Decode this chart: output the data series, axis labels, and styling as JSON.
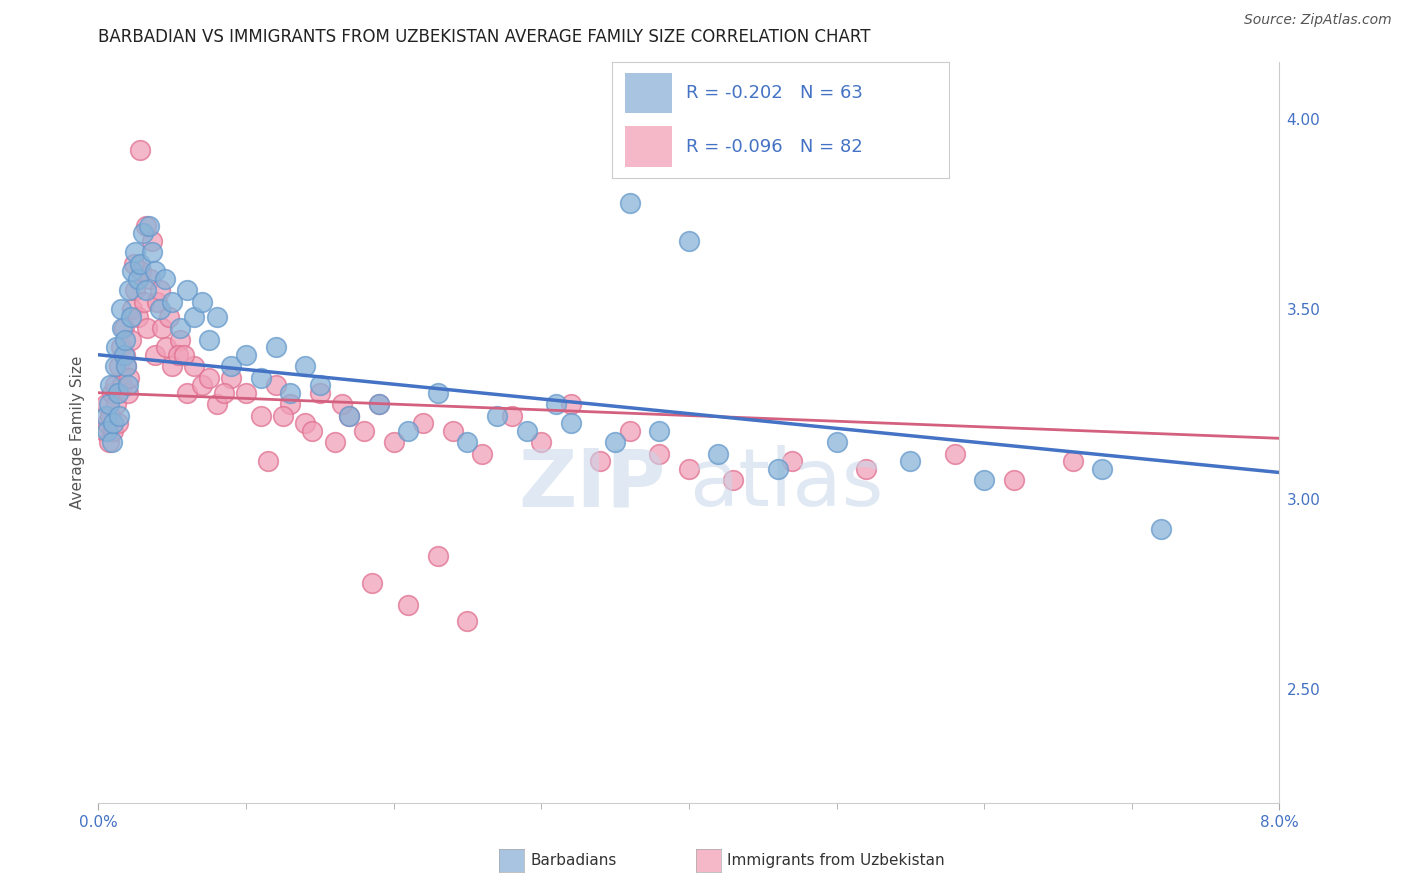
{
  "title": "BARBADIAN VS IMMIGRANTS FROM UZBEKISTAN AVERAGE FAMILY SIZE CORRELATION CHART",
  "source": "Source: ZipAtlas.com",
  "ylabel": "Average Family Size",
  "xlim": [
    0.0,
    8.0
  ],
  "ylim": [
    2.2,
    4.15
  ],
  "yticks_right": [
    2.5,
    3.0,
    3.5,
    4.0
  ],
  "background_color": "#ffffff",
  "grid_color": "#dddddd",
  "blue_color": "#88b4d8",
  "pink_color": "#f0a0b8",
  "blue_edge": "#6699cc",
  "pink_edge": "#e07090",
  "trend_blue": "#4472c4",
  "trend_pink": "#d46080",
  "legend_color_blue": "#a8c4e0",
  "legend_color_pink": "#f4b8c8",
  "blue_R": -0.202,
  "blue_N": 63,
  "pink_R": -0.096,
  "pink_N": 82,
  "blue_x": [
    0.05,
    0.06,
    0.07,
    0.08,
    0.09,
    0.1,
    0.11,
    0.12,
    0.13,
    0.14,
    0.15,
    0.16,
    0.17,
    0.18,
    0.19,
    0.2,
    0.21,
    0.22,
    0.23,
    0.25,
    0.27,
    0.28,
    0.3,
    0.32,
    0.34,
    0.36,
    0.38,
    0.42,
    0.45,
    0.5,
    0.55,
    0.6,
    0.65,
    0.7,
    0.75,
    0.8,
    0.9,
    1.0,
    1.1,
    1.2,
    1.3,
    1.4,
    1.5,
    1.7,
    1.9,
    2.1,
    2.3,
    2.5,
    2.7,
    2.9,
    3.2,
    3.5,
    3.8,
    4.2,
    4.6,
    5.0,
    5.5,
    6.0,
    6.8,
    7.2,
    3.1,
    3.6,
    4.0
  ],
  "blue_y": [
    3.22,
    3.18,
    3.25,
    3.3,
    3.15,
    3.2,
    3.35,
    3.4,
    3.28,
    3.22,
    3.5,
    3.45,
    3.38,
    3.42,
    3.35,
    3.3,
    3.55,
    3.48,
    3.6,
    3.65,
    3.58,
    3.62,
    3.7,
    3.55,
    3.72,
    3.65,
    3.6,
    3.5,
    3.58,
    3.52,
    3.45,
    3.55,
    3.48,
    3.52,
    3.42,
    3.48,
    3.35,
    3.38,
    3.32,
    3.4,
    3.28,
    3.35,
    3.3,
    3.22,
    3.25,
    3.18,
    3.28,
    3.15,
    3.22,
    3.18,
    3.2,
    3.15,
    3.18,
    3.12,
    3.08,
    3.15,
    3.1,
    3.05,
    3.08,
    2.92,
    3.25,
    3.78,
    3.68
  ],
  "pink_x": [
    0.04,
    0.05,
    0.06,
    0.07,
    0.08,
    0.09,
    0.1,
    0.11,
    0.12,
    0.13,
    0.14,
    0.15,
    0.16,
    0.17,
    0.18,
    0.19,
    0.2,
    0.21,
    0.22,
    0.23,
    0.25,
    0.27,
    0.29,
    0.31,
    0.33,
    0.35,
    0.38,
    0.4,
    0.43,
    0.46,
    0.5,
    0.55,
    0.6,
    0.65,
    0.7,
    0.8,
    0.9,
    1.0,
    1.1,
    1.2,
    1.3,
    1.4,
    1.5,
    1.6,
    1.7,
    1.8,
    1.9,
    2.0,
    2.2,
    2.4,
    2.6,
    2.8,
    3.0,
    3.2,
    3.4,
    3.6,
    3.8,
    4.0,
    4.3,
    4.7,
    5.2,
    5.8,
    6.2,
    6.6,
    0.24,
    0.36,
    0.42,
    0.48,
    0.54,
    0.75,
    0.85,
    1.25,
    1.45,
    1.65,
    1.85,
    2.1,
    2.3,
    2.5,
    0.28,
    0.32,
    0.58,
    1.15
  ],
  "pink_y": [
    3.18,
    3.25,
    3.2,
    3.15,
    3.22,
    3.28,
    3.18,
    3.3,
    3.25,
    3.2,
    3.35,
    3.4,
    3.3,
    3.45,
    3.38,
    3.35,
    3.28,
    3.32,
    3.42,
    3.5,
    3.55,
    3.48,
    3.6,
    3.52,
    3.45,
    3.58,
    3.38,
    3.52,
    3.45,
    3.4,
    3.35,
    3.42,
    3.28,
    3.35,
    3.3,
    3.25,
    3.32,
    3.28,
    3.22,
    3.3,
    3.25,
    3.2,
    3.28,
    3.15,
    3.22,
    3.18,
    3.25,
    3.15,
    3.2,
    3.18,
    3.12,
    3.22,
    3.15,
    3.25,
    3.1,
    3.18,
    3.12,
    3.08,
    3.05,
    3.1,
    3.08,
    3.12,
    3.05,
    3.1,
    3.62,
    3.68,
    3.55,
    3.48,
    3.38,
    3.32,
    3.28,
    3.22,
    3.18,
    3.25,
    2.78,
    2.72,
    2.85,
    2.68,
    3.92,
    3.72,
    3.38,
    3.1
  ],
  "blue_trend_start": 3.38,
  "blue_trend_end": 3.07,
  "pink_trend_start": 3.28,
  "pink_trend_end": 3.16,
  "title_fontsize": 12,
  "label_fontsize": 11,
  "tick_fontsize": 11,
  "legend_fontsize": 13,
  "source_fontsize": 10
}
